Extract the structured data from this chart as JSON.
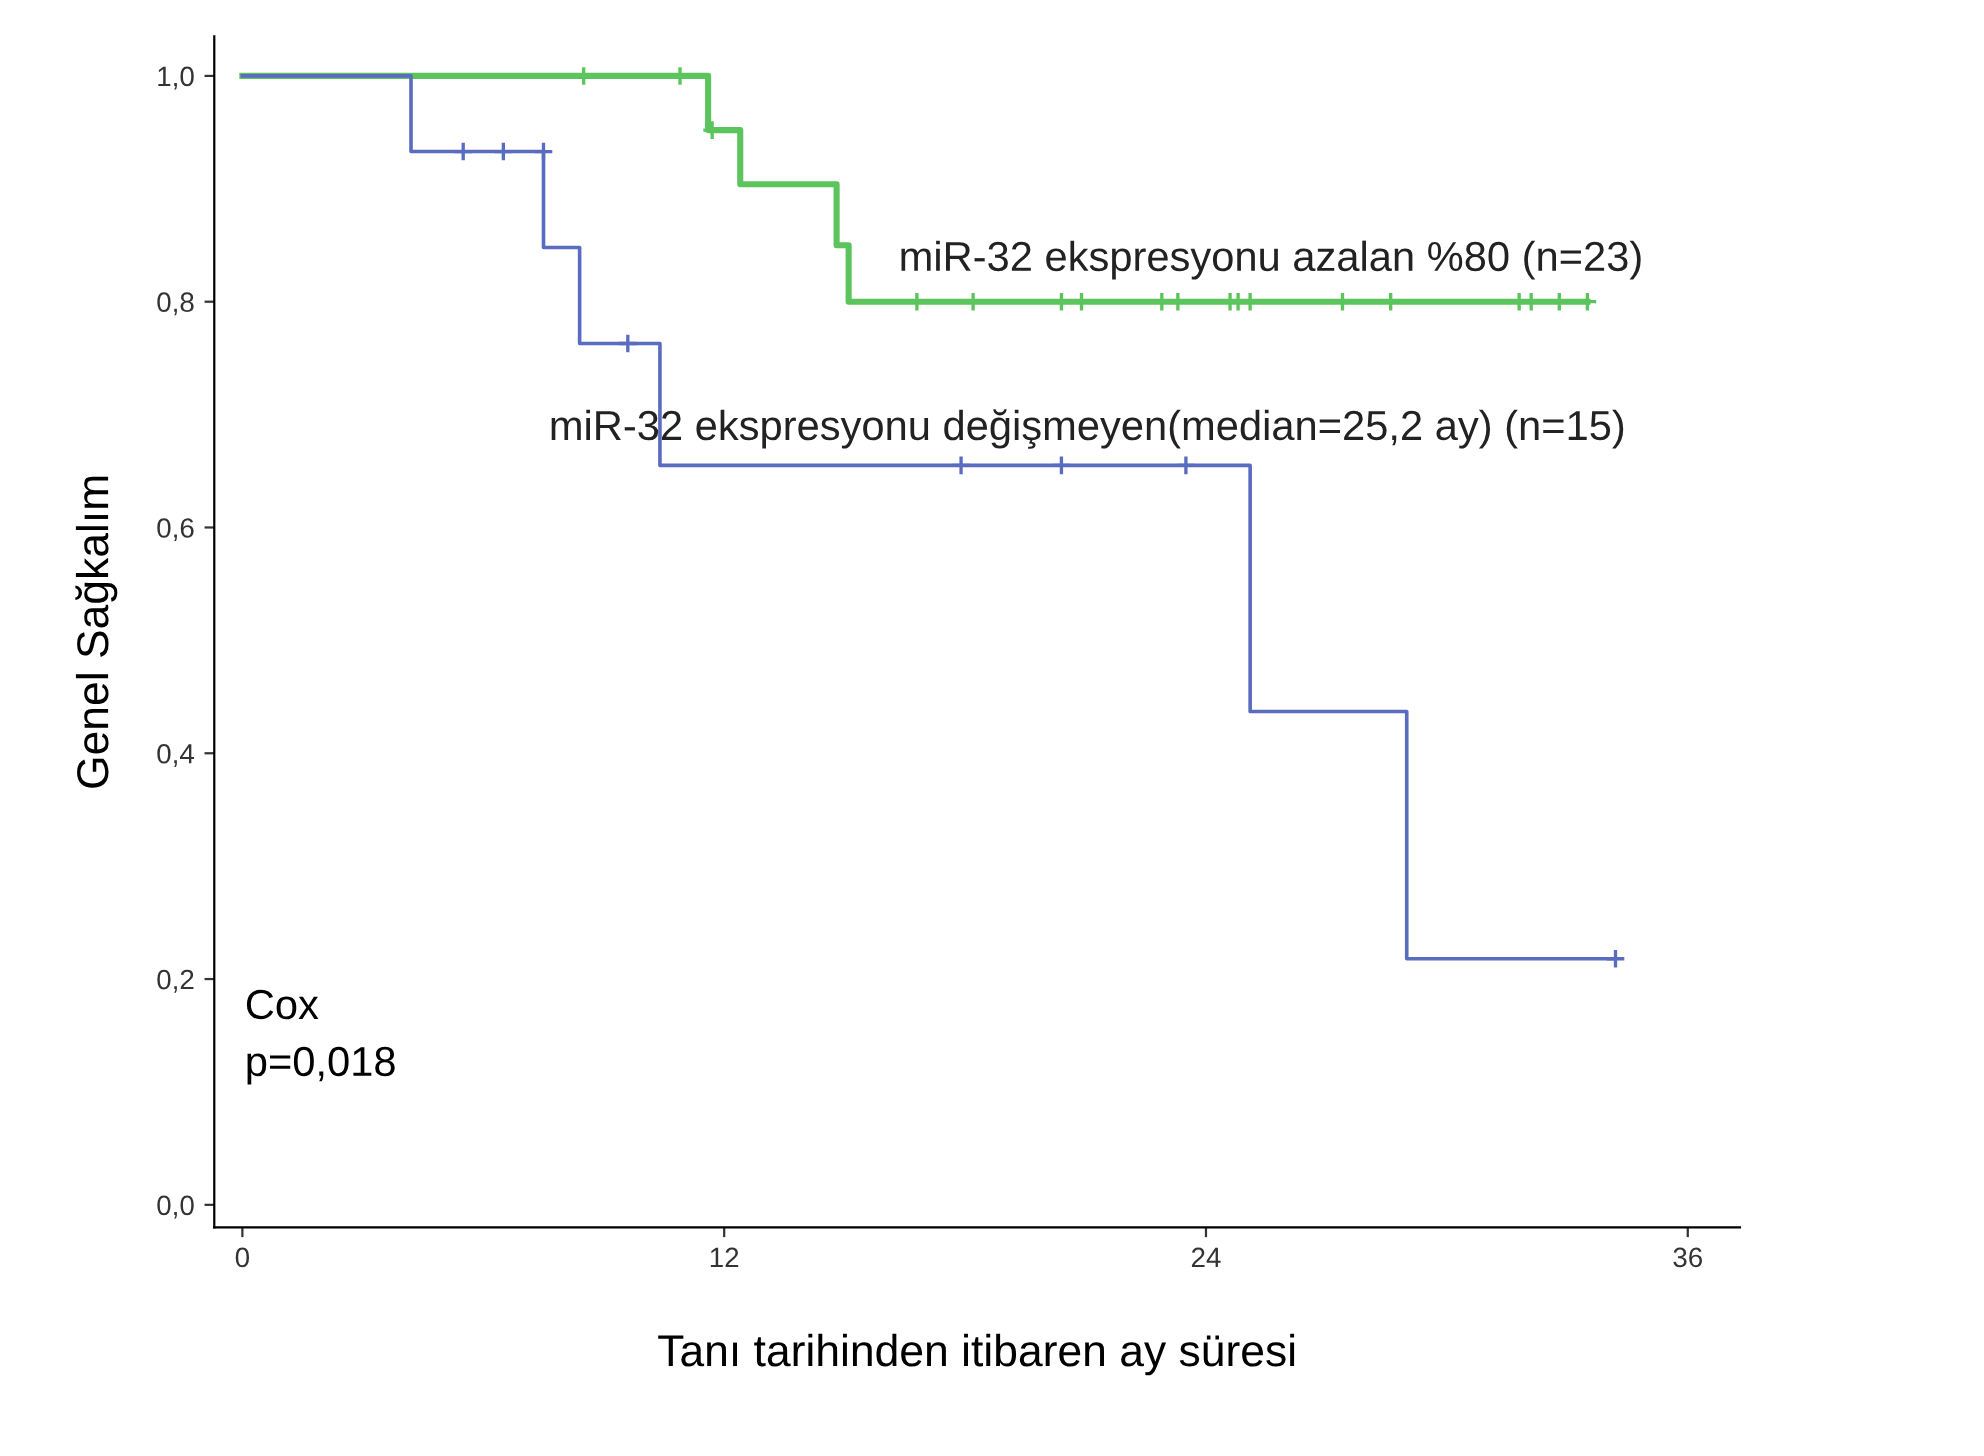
{
  "chart_data": {
    "type": "step",
    "xlabel": "Tanı tarihinden itibaren ay süresi",
    "ylabel": "Genel Sağkalım",
    "xlim": [
      -0.7,
      37.3
    ],
    "xticks": [
      0,
      12,
      24,
      36
    ],
    "ylim": [
      -0.02,
      1.035
    ],
    "yticks": [
      {
        "value": 0,
        "label": "0,0"
      },
      {
        "value": 0.2,
        "label": "0,2"
      },
      {
        "value": 0.4,
        "label": "0,4"
      },
      {
        "value": 0.6,
        "label": "0,6"
      },
      {
        "value": 0.8,
        "label": "0,8"
      },
      {
        "value": 1,
        "label": "1,0"
      }
    ],
    "grid": false,
    "legend": false,
    "annotations": [
      "Cox\np=0,018"
    ],
    "series": [
      {
        "name": "miR-32 ekspresyonu azalan %80 (n=23)",
        "color": "#5cc45c",
        "x": [
          0,
          11.6,
          12.4,
          14.8,
          15.1,
          33.5
        ],
        "values": [
          1,
          0.952,
          0.904,
          0.85,
          0.8,
          0.8
        ]
      },
      {
        "name": "miR-32 ekspresyonu değişmeyen(median=25,2 ay) (n=15)",
        "color": "#5a6cc0",
        "x": [
          0,
          4.2,
          7.5,
          8.4,
          10.4,
          25.1,
          29.0,
          34.2
        ],
        "values": [
          1,
          0.933,
          0.848,
          0.763,
          0.655,
          0.437,
          0.218,
          0.218
        ]
      },
      {
        "type": "scatter",
        "marker": "cross",
        "color": "#5cc45c",
        "x": [
          8.5,
          10.9,
          11.7,
          16.8,
          18.2,
          20.4,
          20.9,
          22.9,
          23.3,
          24.6,
          24.8,
          25.1,
          27.4,
          28.6,
          31.8,
          32.1,
          32.8,
          33.5
        ],
        "values": [
          1,
          1,
          0.952,
          0.8,
          0.8,
          0.8,
          0.8,
          0.8,
          0.8,
          0.8,
          0.8,
          0.8,
          0.8,
          0.8,
          0.8,
          0.8,
          0.8,
          0.8
        ]
      },
      {
        "type": "scatter",
        "marker": "cross",
        "color": "#5a6cc0",
        "x": [
          5.5,
          6.5,
          7.5,
          9.6,
          17.9,
          20.4,
          23.5,
          34.2
        ],
        "values": [
          0.933,
          0.933,
          0.933,
          0.763,
          0.655,
          0.655,
          0.655,
          0.218
        ]
      }
    ]
  }
}
